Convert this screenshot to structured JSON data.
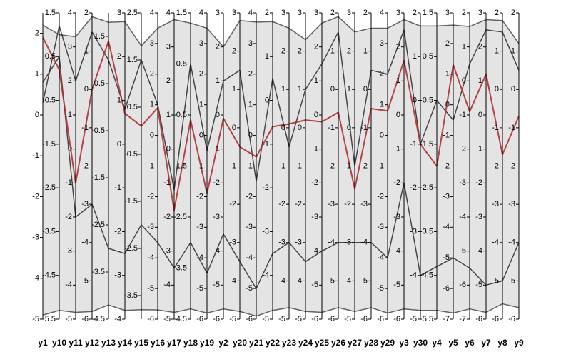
{
  "chart_data": {
    "type": "parallel",
    "axes": [
      {
        "name": "y1",
        "ylim": [
          -5,
          2.5
        ],
        "yticks": [
          -5,
          -4,
          -3,
          -2,
          -1,
          0,
          1,
          2
        ]
      },
      {
        "name": "y10",
        "ylim": [
          -5.5,
          1.5
        ],
        "yticks": [
          -5.5,
          -4.5,
          -3.5,
          -2.5,
          -1.5,
          -0.5,
          0.5,
          1.5
        ]
      },
      {
        "name": "y11",
        "ylim": [
          -5,
          4
        ],
        "yticks": [
          -5,
          -4,
          -3,
          -2,
          -1,
          0,
          1,
          2,
          3,
          4
        ]
      },
      {
        "name": "y12",
        "ylim": [
          -6,
          2
        ],
        "yticks": [
          -6,
          -5,
          -4,
          -3,
          -2,
          -1,
          0,
          1,
          2
        ]
      },
      {
        "name": "y13",
        "ylim": [
          -4.5,
          2
        ],
        "yticks": [
          -4.5,
          -3.5,
          -2.5,
          -1.5,
          -0.5,
          0.5,
          1.5
        ]
      },
      {
        "name": "y14",
        "ylim": [
          -4,
          3
        ],
        "yticks": [
          -4,
          -3,
          -2,
          -1,
          0,
          1,
          2,
          3
        ]
      },
      {
        "name": "y15",
        "ylim": [
          -4,
          2.5
        ],
        "yticks": [
          -3.5,
          -2.5,
          -1.5,
          -0.5,
          0.5,
          1.5,
          2.5
        ]
      },
      {
        "name": "y16",
        "ylim": [
          -6,
          4
        ],
        "yticks": [
          -6,
          -5,
          -4,
          -3,
          -2,
          -1,
          0,
          1,
          2,
          3,
          4
        ]
      },
      {
        "name": "y17",
        "ylim": [
          -5,
          4
        ],
        "yticks": [
          -5,
          -4,
          -3,
          -2,
          -1,
          0,
          1,
          2,
          3,
          4
        ]
      },
      {
        "name": "y18",
        "ylim": [
          -4.5,
          1.5
        ],
        "yticks": [
          -4.5,
          -3.5,
          -2.5,
          -1.5,
          -0.5,
          0.5,
          1.5
        ]
      },
      {
        "name": "y19",
        "ylim": [
          -6,
          4
        ],
        "yticks": [
          -6,
          -5,
          -4,
          -3,
          -2,
          -1,
          0,
          1,
          2,
          3,
          4
        ]
      },
      {
        "name": "y2",
        "ylim": [
          -6,
          3
        ],
        "yticks": [
          -6,
          -5,
          -4,
          -3,
          -2,
          -1,
          0,
          1,
          2,
          3
        ]
      },
      {
        "name": "y20",
        "ylim": [
          -5,
          3
        ],
        "yticks": [
          -5,
          -4,
          -3,
          -2,
          -1,
          0,
          1,
          2,
          3
        ]
      },
      {
        "name": "y21",
        "ylim": [
          -6,
          4
        ],
        "yticks": [
          -6,
          -5,
          -4,
          -3,
          -2,
          -1,
          0,
          1,
          2,
          3,
          4
        ]
      },
      {
        "name": "y22",
        "ylim": [
          -5,
          2
        ],
        "yticks": [
          -5,
          -4,
          -3,
          -2,
          -1,
          0,
          1,
          2
        ]
      },
      {
        "name": "y23",
        "ylim": [
          -5,
          3
        ],
        "yticks": [
          -5,
          -4,
          -3,
          -2,
          -1,
          0,
          1,
          2,
          3
        ]
      },
      {
        "name": "y24",
        "ylim": [
          -5,
          3
        ],
        "yticks": [
          -5,
          -4,
          -3,
          -2,
          -1,
          0,
          1,
          2,
          3
        ]
      },
      {
        "name": "y25",
        "ylim": [
          -6,
          3
        ],
        "yticks": [
          -6,
          -5,
          -4,
          -3,
          -2,
          -1,
          0,
          1,
          2,
          3
        ]
      },
      {
        "name": "y26",
        "ylim": [
          -6,
          2
        ],
        "yticks": [
          -6,
          -5,
          -4,
          -3,
          -2,
          -1,
          0,
          1,
          2
        ]
      },
      {
        "name": "y27",
        "ylim": [
          -5,
          3
        ],
        "yticks": [
          -5,
          -4,
          -3,
          -2,
          -1,
          0,
          1,
          2,
          3
        ]
      },
      {
        "name": "y28",
        "ylim": [
          -6,
          2
        ],
        "yticks": [
          -6,
          -5,
          -4,
          -3,
          -2,
          -1,
          0,
          1,
          2
        ]
      },
      {
        "name": "y29",
        "ylim": [
          -6,
          4
        ],
        "yticks": [
          -6,
          -5,
          -4,
          -3,
          -2,
          -1,
          0,
          1,
          2,
          3,
          4
        ]
      },
      {
        "name": "y3",
        "ylim": [
          -6,
          3
        ],
        "yticks": [
          -6,
          -5,
          -4,
          -3,
          -2,
          -1,
          0,
          1,
          2,
          3
        ]
      },
      {
        "name": "y30",
        "ylim": [
          -5,
          2
        ],
        "yticks": [
          -5,
          -4,
          -3,
          -2,
          -1,
          0,
          1,
          2
        ]
      },
      {
        "name": "y4",
        "ylim": [
          -5.5,
          1.5
        ],
        "yticks": [
          -5.5,
          -4.5,
          -3.5,
          -2.5,
          -1.5,
          -0.5,
          0.5,
          1.5
        ]
      },
      {
        "name": "y5",
        "ylim": [
          -7,
          3
        ],
        "yticks": [
          -7,
          -6,
          -5,
          -4,
          -3,
          -2,
          -1,
          0,
          1,
          2,
          3
        ]
      },
      {
        "name": "y6",
        "ylim": [
          -7,
          2
        ],
        "yticks": [
          -7,
          -6,
          -5,
          -4,
          -3,
          -2,
          -1,
          0,
          1,
          2
        ]
      },
      {
        "name": "y7",
        "ylim": [
          -6,
          3
        ],
        "yticks": [
          -6,
          -5,
          -4,
          -3,
          -2,
          -1,
          0,
          1,
          2,
          3
        ]
      },
      {
        "name": "y8",
        "ylim": [
          -6,
          2
        ],
        "yticks": [
          -6,
          -5,
          -4,
          -3,
          -2,
          -1,
          0,
          1,
          2
        ]
      },
      {
        "name": "y9",
        "ylim": [
          -6,
          2
        ],
        "yticks": [
          -6,
          -5,
          -4,
          -3,
          -2,
          -1,
          0,
          1,
          2
        ]
      }
    ],
    "series": [
      {
        "color": "#333333",
        "values": [
          2.2,
          1.0,
          3.3,
          1.9,
          1.8,
          2.8,
          1.8,
          3.5,
          3.8,
          1.3,
          3.5,
          2.0,
          2.8,
          3.7,
          1.8,
          2.6,
          2.3,
          2.7,
          1.9,
          2.5,
          1.6,
          3.5,
          2.8,
          1.7,
          1.2,
          2.6,
          1.6,
          2.8,
          1.8,
          1.2
        ]
      },
      {
        "color": "#333333",
        "values": [
          -4.9,
          -5.3,
          -4.8,
          -5.8,
          -4.2,
          -3.8,
          -3.8,
          -5.7,
          -4.8,
          -4.3,
          -5.8,
          -5.7,
          -4.8,
          -5.9,
          -4.8,
          -4.7,
          -4.8,
          -5.8,
          -5.7,
          -4.8,
          -5.7,
          -5.8,
          -5.7,
          -4.8,
          -5.3,
          -6.8,
          -6.7,
          -5.8,
          -5.6,
          -5.7
        ]
      },
      {
        "color": "#111111",
        "values": [
          0.8,
          0.5,
          -2.0,
          -3.0,
          -3.0,
          -2.5,
          -2.0,
          -3.5,
          -3.5,
          -3.0,
          -4.5,
          -3.5,
          -3.5,
          -5.0,
          -3.5,
          -3.0,
          -3.5,
          -4.0,
          -4.0,
          -3.0,
          -4.0,
          -4.0,
          -2.0,
          -4.0,
          -4.3,
          -5.0,
          -5.5,
          -5.0,
          -5.0,
          -4.0
        ]
      },
      {
        "color": "#111111",
        "values": [
          0.3,
          1.2,
          2.0,
          1.5,
          1.0,
          0.8,
          1.5,
          1.0,
          -1.2,
          0.5,
          -0.5,
          1.0,
          1.5,
          -1.5,
          0.5,
          -0.5,
          1.0,
          1.5,
          1.5,
          -1.0,
          0.5,
          2.0,
          2.5,
          -1.0,
          -0.5,
          -0.5,
          0.5,
          2.5,
          1.5,
          0.5
        ]
      },
      {
        "color": "#b03030",
        "values": [
          1.9,
          0.2,
          -1.0,
          0.0,
          1.4,
          0.7,
          0.1,
          0.9,
          -1.8,
          -0.6,
          -1.9,
          -0.1,
          -0.5,
          -0.7,
          -0.6,
          0.1,
          0.2,
          -0.2,
          -0.6,
          -1.6,
          -0.5,
          0.8,
          1.6,
          -1.0,
          -2.0,
          1.3,
          -0.9,
          1.2,
          -1.7,
          -0.7
        ]
      }
    ]
  }
}
